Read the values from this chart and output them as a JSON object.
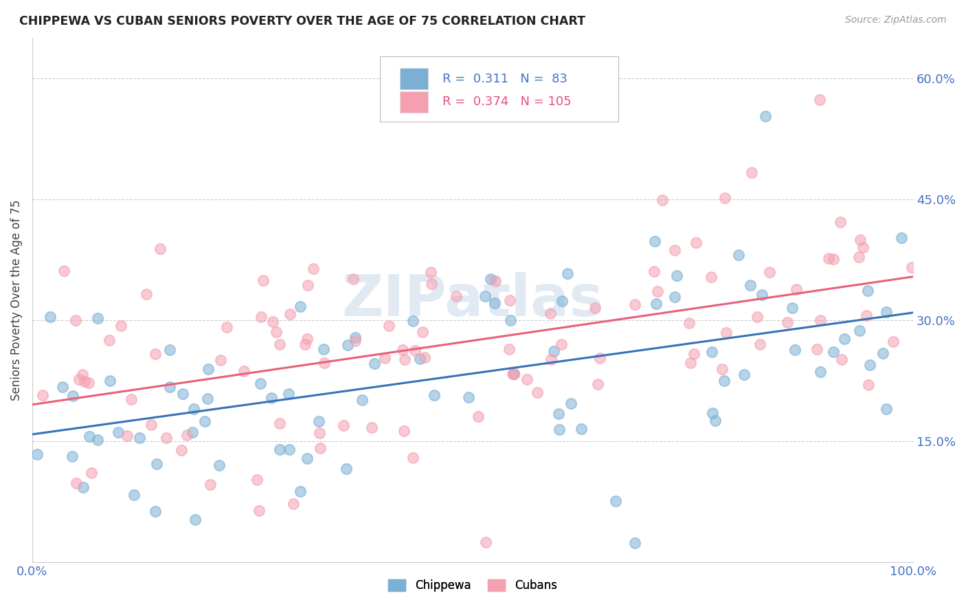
{
  "title": "CHIPPEWA VS CUBAN SENIORS POVERTY OVER THE AGE OF 75 CORRELATION CHART",
  "source": "Source: ZipAtlas.com",
  "ylabel": "Seniors Poverty Over the Age of 75",
  "xlim": [
    0,
    1.0
  ],
  "ylim": [
    0,
    0.65
  ],
  "yticks": [
    0.15,
    0.3,
    0.45,
    0.6
  ],
  "ytick_labels": [
    "15.0%",
    "30.0%",
    "45.0%",
    "60.0%"
  ],
  "xticks": [
    0.0,
    0.25,
    0.5,
    0.75,
    1.0
  ],
  "xtick_labels": [
    "0.0%",
    "",
    "",
    "",
    "100.0%"
  ],
  "chippewa_R": 0.311,
  "chippewa_N": 83,
  "cubans_R": 0.374,
  "cubans_N": 105,
  "chippewa_color": "#7bafd4",
  "cubans_color": "#f4a0b0",
  "chippewa_line_color": "#3672b8",
  "cubans_line_color": "#e8607a",
  "tick_color": "#4472c4",
  "background_color": "#ffffff",
  "grid_color": "#cccccc",
  "watermark": "ZIPatlas",
  "chippewa_line_y0": 0.175,
  "chippewa_line_y1": 0.285,
  "cubans_line_y0": 0.215,
  "cubans_line_y1": 0.345
}
